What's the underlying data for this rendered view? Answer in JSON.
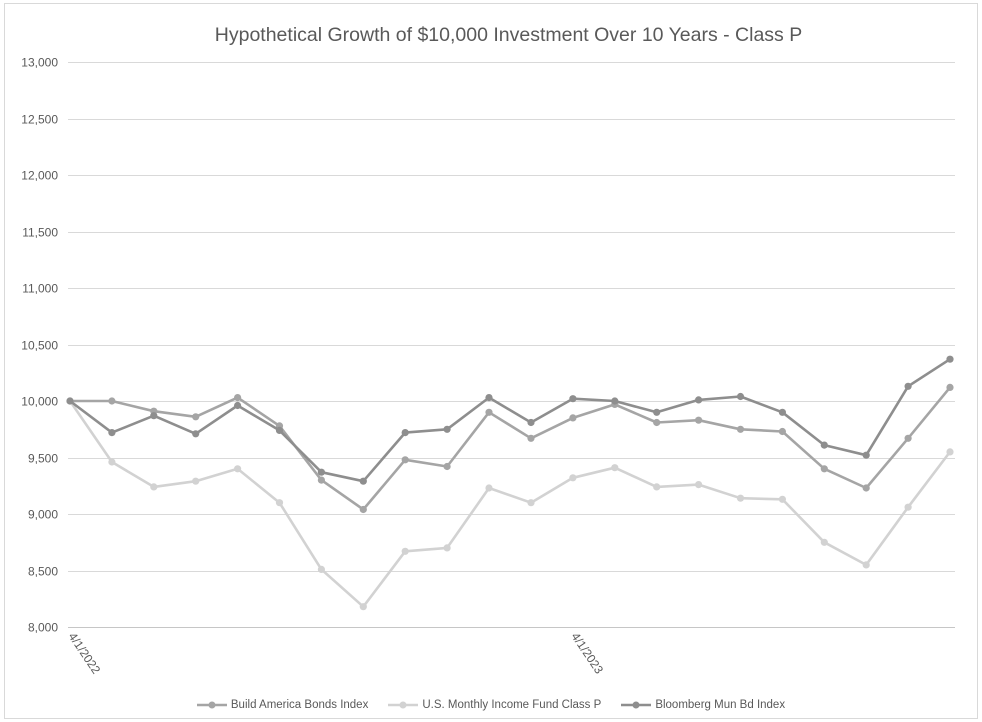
{
  "chart_data": {
    "type": "line",
    "title": "Hypothetical Growth of $10,000 Investment Over 10 Years - Class P",
    "x": [
      "4/1/2022",
      "5/1/2022",
      "6/1/2022",
      "7/1/2022",
      "8/1/2022",
      "9/1/2022",
      "10/1/2022",
      "11/1/2022",
      "12/1/2022",
      "1/1/2023",
      "2/1/2023",
      "3/1/2023",
      "4/1/2023",
      "5/1/2023",
      "6/1/2023",
      "7/1/2023",
      "8/1/2023",
      "9/1/2023",
      "10/1/2023",
      "11/1/2023",
      "12/1/2023",
      "1/1/2024"
    ],
    "x_tick_labels": [
      "4/1/2022",
      "4/1/2023"
    ],
    "ylim": [
      8000,
      13000
    ],
    "y_tick_labels": [
      "8,000",
      "8,500",
      "9,000",
      "9,500",
      "10,000",
      "10,500",
      "11,000",
      "11,500",
      "12,000",
      "12,500",
      "13,000"
    ],
    "grid": "horizontal",
    "legend": "bottom",
    "markers": true,
    "series": [
      {
        "name": "Build America Bonds Index",
        "color": "#a5a5a5",
        "values": [
          10000,
          10000,
          9910,
          9860,
          10030,
          9780,
          9300,
          9040,
          9480,
          9420,
          9900,
          9670,
          9850,
          9970,
          9810,
          9830,
          9750,
          9730,
          9400,
          9230,
          9670,
          10120
        ]
      },
      {
        "name": "U.S. Monthly Income Fund Class P",
        "color": "#d2d2d2",
        "values": [
          10000,
          9460,
          9240,
          9290,
          9400,
          9100,
          8510,
          8180,
          8670,
          8700,
          9230,
          9100,
          9320,
          9410,
          9240,
          9260,
          9140,
          9130,
          8750,
          8550,
          9060,
          9550
        ]
      },
      {
        "name": "Bloomberg Mun Bd Index",
        "color": "#8e8e8e",
        "values": [
          10000,
          9720,
          9870,
          9710,
          9960,
          9740,
          9370,
          9290,
          9720,
          9750,
          10030,
          9810,
          10020,
          10000,
          9900,
          10010,
          10040,
          9900,
          9610,
          9520,
          10130,
          10370
        ]
      }
    ]
  }
}
